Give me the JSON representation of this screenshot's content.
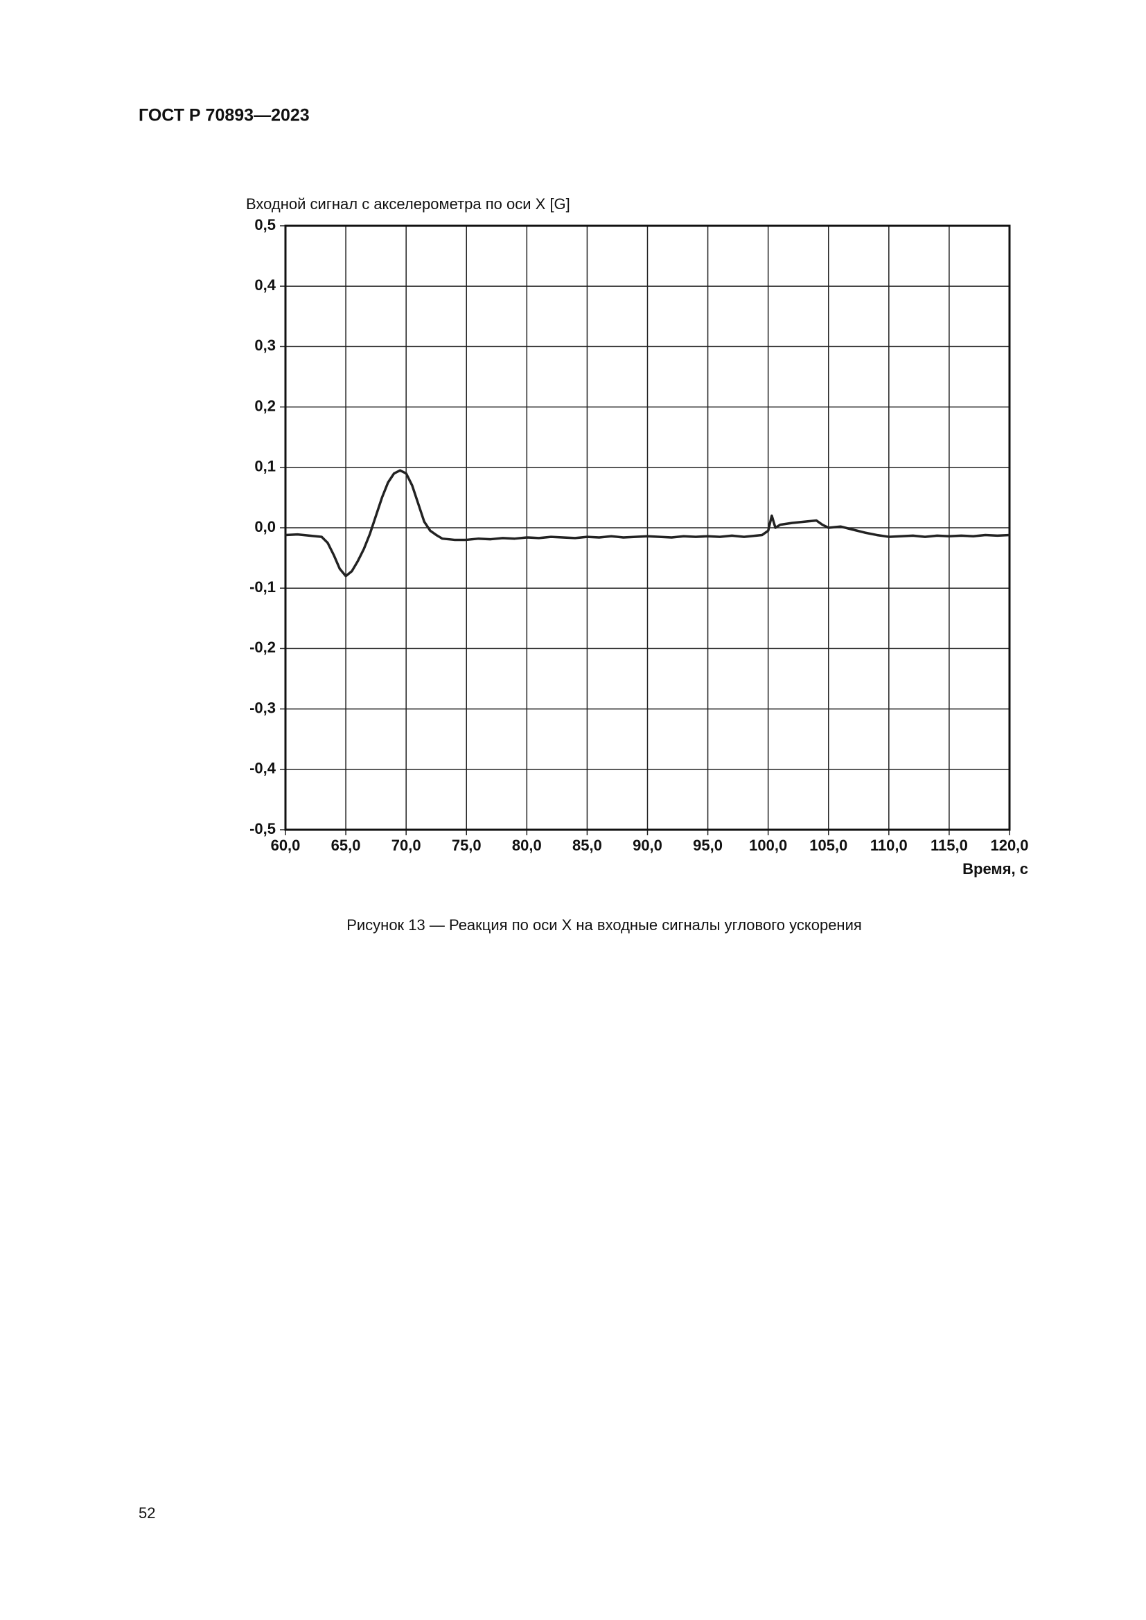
{
  "header": {
    "title": "ГОСТ Р 70893—2023"
  },
  "chart_data": {
    "type": "line",
    "y_label": "Входной сигнал с акселерометра по оси X [G]",
    "x_label": "Время, с",
    "x": [
      60,
      61,
      62,
      63,
      63.5,
      64,
      64.5,
      65,
      65.5,
      66,
      66.5,
      67,
      67.5,
      68,
      68.5,
      69,
      69.5,
      70,
      70.5,
      71,
      71.5,
      72,
      72.5,
      73,
      74,
      75,
      76,
      77,
      78,
      79,
      80,
      81,
      82,
      83,
      84,
      85,
      86,
      87,
      88,
      89,
      90,
      91,
      92,
      93,
      94,
      95,
      96,
      97,
      98,
      99,
      99.5,
      100,
      100.3,
      100.6,
      101,
      102,
      103,
      104,
      104.5,
      105,
      106,
      107,
      108,
      109,
      110,
      111,
      112,
      113,
      114,
      115,
      116,
      117,
      118,
      119,
      120
    ],
    "series": [
      {
        "color": "#222222",
        "values": [
          -0.012,
          -0.011,
          -0.013,
          -0.015,
          -0.025,
          -0.045,
          -0.068,
          -0.08,
          -0.072,
          -0.055,
          -0.035,
          -0.01,
          0.02,
          0.05,
          0.075,
          0.09,
          0.095,
          0.09,
          0.07,
          0.04,
          0.01,
          -0.005,
          -0.012,
          -0.018,
          -0.02,
          -0.02,
          -0.018,
          -0.019,
          -0.017,
          -0.018,
          -0.016,
          -0.017,
          -0.015,
          -0.016,
          -0.017,
          -0.015,
          -0.016,
          -0.014,
          -0.016,
          -0.015,
          -0.014,
          -0.015,
          -0.016,
          -0.014,
          -0.015,
          -0.014,
          -0.015,
          -0.013,
          -0.015,
          -0.013,
          -0.012,
          -0.005,
          0.02,
          0.0,
          0.005,
          0.008,
          0.01,
          0.012,
          0.005,
          0.0,
          0.002,
          -0.003,
          -0.008,
          -0.012,
          -0.015,
          -0.014,
          -0.013,
          -0.015,
          -0.013,
          -0.014,
          -0.013,
          -0.014,
          -0.012,
          -0.013,
          -0.012
        ]
      }
    ],
    "xlim": [
      60,
      120
    ],
    "xticks": [
      {
        "value": 60,
        "label": "60,0"
      },
      {
        "value": 65,
        "label": "65,0"
      },
      {
        "value": 70,
        "label": "70,0"
      },
      {
        "value": 75,
        "label": "75,0"
      },
      {
        "value": 80,
        "label": "80,0"
      },
      {
        "value": 85,
        "label": "85,0"
      },
      {
        "value": 90,
        "label": "90,0"
      },
      {
        "value": 95,
        "label": "95,0"
      },
      {
        "value": 100,
        "label": "100,0"
      },
      {
        "value": 105,
        "label": "105,0"
      },
      {
        "value": 110,
        "label": "110,0"
      },
      {
        "value": 115,
        "label": "115,0"
      },
      {
        "value": 120,
        "label": "120,0"
      }
    ],
    "ylim": [
      -0.5,
      0.5
    ],
    "yticks": [
      {
        "value": 0.5,
        "label": "0,5"
      },
      {
        "value": 0.4,
        "label": "0,4"
      },
      {
        "value": 0.3,
        "label": "0,3"
      },
      {
        "value": 0.2,
        "label": "0,2"
      },
      {
        "value": 0.1,
        "label": "0,1"
      },
      {
        "value": 0.0,
        "label": "0,0"
      },
      {
        "value": -0.1,
        "label": "-0,1"
      },
      {
        "value": -0.2,
        "label": "-0,2"
      },
      {
        "value": -0.3,
        "label": "-0,3"
      },
      {
        "value": -0.4,
        "label": "-0,4"
      },
      {
        "value": -0.5,
        "label": "-0,5"
      }
    ],
    "grid": true
  },
  "caption": "Рисунок 13 — Реакция по оси X на входные сигналы углового ускорения",
  "page_number": "52"
}
